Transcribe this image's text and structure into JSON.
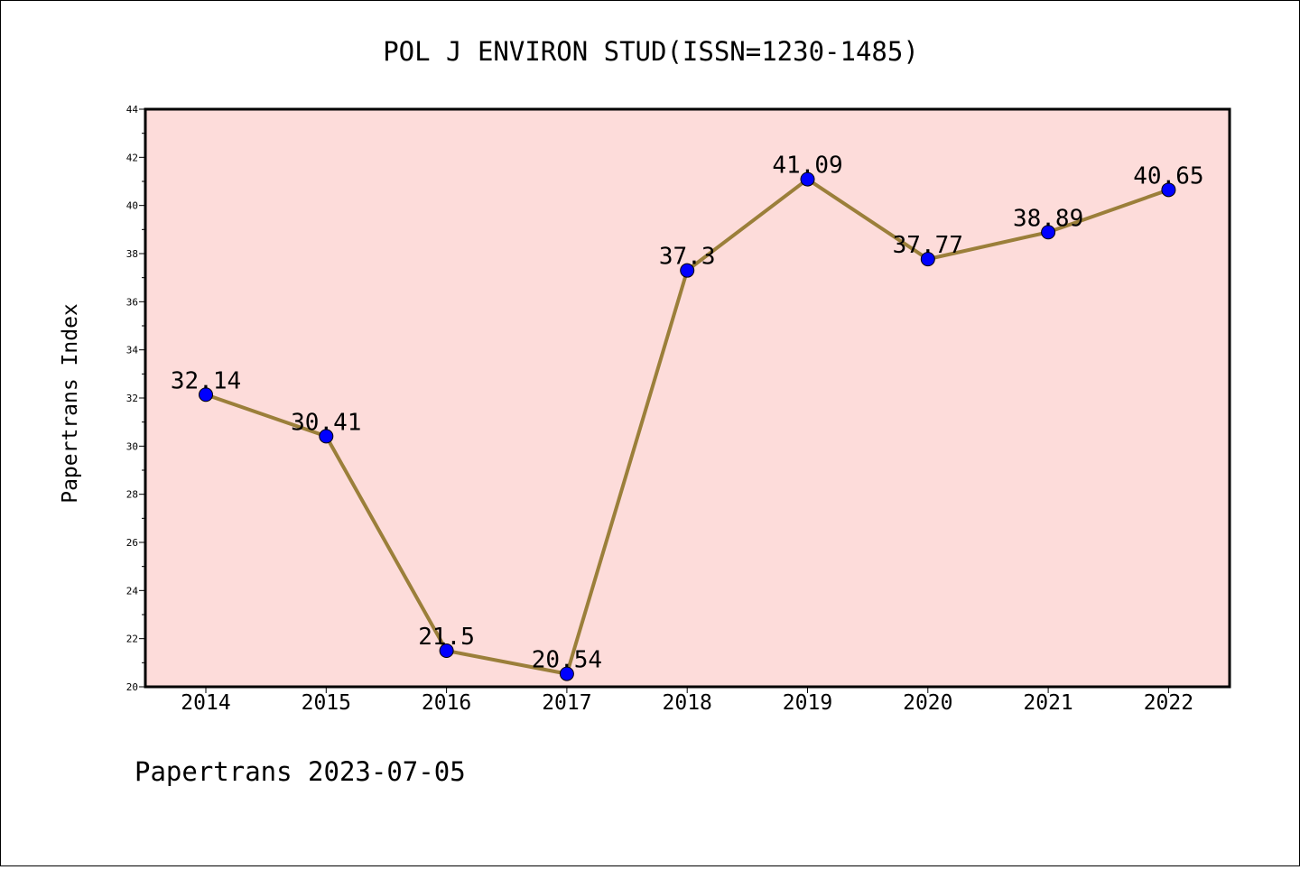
{
  "chart_data": {
    "type": "line",
    "title": "POL J ENVIRON STUD(ISSN=1230-1485)",
    "xlabel": "",
    "ylabel": "Papertrans Index",
    "categories": [
      "2014",
      "2015",
      "2016",
      "2017",
      "2018",
      "2019",
      "2020",
      "2021",
      "2022"
    ],
    "series": [
      {
        "values": [
          32.14,
          30.41,
          21.5,
          20.54,
          37.3,
          41.09,
          37.77,
          38.89,
          40.65
        ]
      }
    ],
    "data_labels": [
      "32.14",
      "30.41",
      "21.5",
      "20.54",
      "37.3",
      "41.09",
      "37.77",
      "38.89",
      "40.65"
    ],
    "ylim": [
      20,
      44
    ],
    "yticks": [
      "20",
      "22",
      "24",
      "26",
      "28",
      "30",
      "32",
      "34",
      "36",
      "38",
      "40",
      "42",
      "44"
    ],
    "grid": false,
    "legend": "none",
    "colors": {
      "plot_background": "#FDDCDA",
      "line": "#9B7F3A",
      "marker": "#0000FF",
      "axes": "#000000"
    }
  },
  "footer": "Papertrans 2023-07-05"
}
